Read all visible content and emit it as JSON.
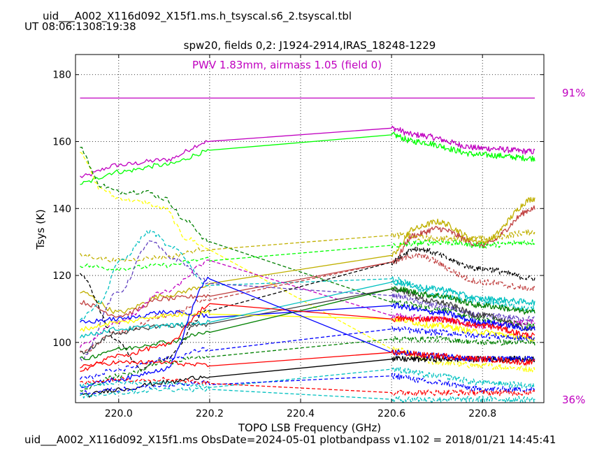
{
  "header": {
    "title": "uid___A002_X116d092_X15f1.ms.h_tsyscal.s6_2.tsyscal.tbl",
    "time": "UT 08:06:1308:19:38"
  },
  "footer": {
    "text": "uid___A002_X116d092_X15f1.ms  ObsDate=2024-05-01   plotbandpass v1.102 = 2018/01/21 14:45:41"
  },
  "chart_data": {
    "type": "line",
    "title": "spw20,  fields 0,2: J1924-2914,IRAS_18248-1229",
    "xlabel": "TOPO LSB Frequency (GHz)",
    "ylabel": "Tsys (K)",
    "xlim": [
      219.905,
      220.935
    ],
    "ylim": [
      82,
      186
    ],
    "xticks": [
      "220.0",
      "220.2",
      "220.4",
      "220.6",
      "220.8"
    ],
    "yticks": [
      "100",
      "120",
      "140",
      "160",
      "180"
    ],
    "grid": true,
    "annotation": "PWV 1.83mm, airmass 1.05 (field 0)",
    "transmission_label_top": "91%",
    "transmission_label_bottom": "36%",
    "transmission_color": "#c000c0",
    "transmission_value": 173,
    "gap": [
      220.2,
      220.6
    ],
    "series": [
      {
        "color": "#c000c0",
        "dash": false,
        "knots": [
          [
            219.915,
            149.5
          ],
          [
            220.0,
            153
          ],
          [
            220.1,
            154.5
          ],
          [
            220.2,
            160
          ],
          [
            220.6,
            164
          ],
          [
            220.65,
            162
          ],
          [
            220.8,
            158
          ],
          [
            220.915,
            157
          ]
        ]
      },
      {
        "color": "#00ff00",
        "dash": false,
        "knots": [
          [
            219.915,
            147.5
          ],
          [
            220.0,
            151
          ],
          [
            220.1,
            153
          ],
          [
            220.2,
            157
          ],
          [
            220.6,
            162
          ],
          [
            220.65,
            160
          ],
          [
            220.8,
            156
          ],
          [
            220.915,
            155
          ]
        ]
      },
      {
        "color": "#ffff00",
        "dash": true,
        "knots": [
          [
            219.915,
            157
          ],
          [
            219.96,
            146
          ],
          [
            220.0,
            143
          ],
          [
            220.05,
            142
          ],
          [
            220.1,
            140
          ],
          [
            220.15,
            131
          ],
          [
            220.2,
            128
          ],
          [
            220.6,
            98
          ],
          [
            220.7,
            94
          ],
          [
            220.8,
            93
          ],
          [
            220.915,
            92
          ]
        ]
      },
      {
        "color": "#008000",
        "dash": true,
        "knots": [
          [
            219.915,
            158
          ],
          [
            219.96,
            147
          ],
          [
            220.0,
            145
          ],
          [
            220.06,
            145
          ],
          [
            220.1,
            143
          ],
          [
            220.15,
            136
          ],
          [
            220.2,
            130
          ],
          [
            220.6,
            112
          ],
          [
            220.7,
            110
          ],
          [
            220.8,
            107
          ],
          [
            220.915,
            105
          ]
        ]
      },
      {
        "color": "#c0b000",
        "dash": false,
        "knots": [
          [
            219.915,
            115
          ],
          [
            220.0,
            109
          ],
          [
            220.1,
            114
          ],
          [
            220.2,
            117
          ],
          [
            220.6,
            126
          ],
          [
            220.65,
            134
          ],
          [
            220.7,
            136
          ],
          [
            220.8,
            130
          ],
          [
            220.915,
            143
          ]
        ]
      },
      {
        "color": "#c04040",
        "dash": false,
        "knots": [
          [
            219.915,
            112
          ],
          [
            220.0,
            108
          ],
          [
            220.1,
            113
          ],
          [
            220.2,
            114
          ],
          [
            220.6,
            124
          ],
          [
            220.65,
            132
          ],
          [
            220.7,
            134
          ],
          [
            220.8,
            129
          ],
          [
            220.915,
            140
          ]
        ]
      },
      {
        "color": "#c0b000",
        "dash": true,
        "knots": [
          [
            219.915,
            126
          ],
          [
            220.0,
            124.5
          ],
          [
            220.1,
            125.5
          ],
          [
            220.2,
            128
          ],
          [
            220.6,
            132
          ],
          [
            220.7,
            131
          ],
          [
            220.8,
            131
          ],
          [
            220.915,
            133
          ]
        ]
      },
      {
        "color": "#00ff00",
        "dash": true,
        "knots": [
          [
            219.915,
            123
          ],
          [
            220.0,
            122
          ],
          [
            220.1,
            123
          ],
          [
            220.2,
            125
          ],
          [
            220.6,
            129
          ],
          [
            220.7,
            130
          ],
          [
            220.8,
            129
          ],
          [
            220.915,
            130
          ]
        ]
      },
      {
        "color": "#00c0c0",
        "dash": true,
        "knots": [
          [
            219.915,
            107
          ],
          [
            219.96,
            112
          ],
          [
            220.0,
            124
          ],
          [
            220.07,
            133
          ],
          [
            220.12,
            128
          ],
          [
            220.2,
            117
          ],
          [
            220.6,
            119
          ],
          [
            220.7,
            114
          ],
          [
            220.8,
            112
          ],
          [
            220.915,
            110
          ]
        ]
      },
      {
        "color": "#6040c0",
        "dash": true,
        "knots": [
          [
            219.915,
            95
          ],
          [
            220.0,
            115
          ],
          [
            220.07,
            130
          ],
          [
            220.12,
            125
          ],
          [
            220.2,
            118
          ],
          [
            220.6,
            114
          ],
          [
            220.7,
            111
          ],
          [
            220.8,
            108
          ],
          [
            220.915,
            107
          ]
        ]
      },
      {
        "color": "#c000c0",
        "dash": true,
        "knots": [
          [
            219.915,
            99
          ],
          [
            220.0,
            106
          ],
          [
            220.1,
            115
          ],
          [
            220.2,
            124
          ],
          [
            220.6,
            108
          ],
          [
            220.7,
            107
          ],
          [
            220.8,
            105
          ],
          [
            220.915,
            106
          ]
        ]
      },
      {
        "color": "#000000",
        "dash": true,
        "knots": [
          [
            219.915,
            120
          ],
          [
            220.0,
            100
          ],
          [
            220.05,
            92
          ],
          [
            220.1,
            95
          ],
          [
            220.2,
            110
          ],
          [
            220.6,
            124
          ],
          [
            220.65,
            128
          ],
          [
            220.8,
            122
          ],
          [
            220.915,
            119
          ]
        ]
      },
      {
        "color": "#c04040",
        "dash": true,
        "knots": [
          [
            219.915,
            97
          ],
          [
            220.0,
            103
          ],
          [
            220.1,
            108
          ],
          [
            220.2,
            113
          ],
          [
            220.6,
            124
          ],
          [
            220.65,
            126
          ],
          [
            220.8,
            118
          ],
          [
            220.915,
            116
          ]
        ]
      },
      {
        "color": "#404040",
        "dash": false,
        "knots": [
          [
            219.915,
            97
          ],
          [
            220.0,
            103
          ],
          [
            220.1,
            105
          ],
          [
            220.2,
            105
          ],
          [
            220.6,
            116
          ],
          [
            220.7,
            112
          ],
          [
            220.8,
            108
          ],
          [
            220.915,
            104
          ]
        ]
      },
      {
        "color": "#0000ff",
        "dash": false,
        "knots": [
          [
            219.915,
            106
          ],
          [
            220.0,
            107
          ],
          [
            220.1,
            109
          ],
          [
            220.2,
            108
          ],
          [
            220.6,
            111
          ],
          [
            220.7,
            109
          ],
          [
            220.8,
            106
          ],
          [
            220.915,
            104
          ]
        ]
      },
      {
        "color": "#ffff00",
        "dash": false,
        "knots": [
          [
            219.915,
            104
          ],
          [
            220.0,
            106
          ],
          [
            220.1,
            108
          ],
          [
            220.2,
            109
          ],
          [
            220.6,
            107
          ],
          [
            220.7,
            105
          ],
          [
            220.8,
            103
          ],
          [
            220.915,
            101
          ]
        ]
      },
      {
        "color": "#00c0c0",
        "dash": false,
        "knots": [
          [
            219.915,
            102
          ],
          [
            220.0,
            104
          ],
          [
            220.1,
            105
          ],
          [
            220.2,
            106
          ],
          [
            220.6,
            118
          ],
          [
            220.7,
            116
          ],
          [
            220.8,
            113
          ],
          [
            220.915,
            112
          ]
        ]
      },
      {
        "color": "#008000",
        "dash": false,
        "knots": [
          [
            219.915,
            95
          ],
          [
            220.0,
            98
          ],
          [
            220.1,
            100
          ],
          [
            220.2,
            103
          ],
          [
            220.6,
            116
          ],
          [
            220.7,
            114
          ],
          [
            220.8,
            111
          ],
          [
            220.915,
            109
          ]
        ]
      },
      {
        "color": "#ff0000",
        "dash": false,
        "knots": [
          [
            219.915,
            92
          ],
          [
            220.0,
            96
          ],
          [
            220.1,
            99
          ],
          [
            220.2,
            111
          ],
          [
            220.6,
            107
          ],
          [
            220.7,
            107
          ],
          [
            220.8,
            105
          ],
          [
            220.915,
            102
          ]
        ]
      },
      {
        "color": "#0000ff",
        "dash": true,
        "knots": [
          [
            219.915,
            89
          ],
          [
            220.0,
            92
          ],
          [
            220.1,
            95
          ],
          [
            220.2,
            98
          ],
          [
            220.6,
            104
          ],
          [
            220.7,
            103
          ],
          [
            220.8,
            102
          ],
          [
            220.915,
            101
          ]
        ]
      },
      {
        "color": "#008000",
        "dash": true,
        "knots": [
          [
            219.915,
            86
          ],
          [
            220.0,
            90
          ],
          [
            220.1,
            94
          ],
          [
            220.2,
            96
          ],
          [
            220.6,
            101
          ],
          [
            220.7,
            101
          ],
          [
            220.8,
            100
          ],
          [
            220.915,
            100
          ]
        ]
      },
      {
        "color": "#000000",
        "dash": false,
        "knots": [
          [
            219.915,
            84
          ],
          [
            220.0,
            86
          ],
          [
            220.1,
            88
          ],
          [
            220.2,
            90
          ],
          [
            220.6,
            95
          ],
          [
            220.7,
            95
          ],
          [
            220.8,
            95
          ],
          [
            220.915,
            95
          ]
        ]
      },
      {
        "color": "#0000ff",
        "dash": false,
        "knots": [
          [
            219.915,
            87
          ],
          [
            220.0,
            89
          ],
          [
            220.1,
            92
          ],
          [
            220.2,
            119
          ],
          [
            220.6,
            97
          ],
          [
            220.7,
            96
          ],
          [
            220.8,
            95
          ],
          [
            220.915,
            95
          ]
        ]
      },
      {
        "color": "#ff0000",
        "dash": false,
        "knots": [
          [
            219.915,
            93
          ],
          [
            220.0,
            94
          ],
          [
            220.1,
            94
          ],
          [
            220.2,
            93
          ],
          [
            220.6,
            97
          ],
          [
            220.7,
            96
          ],
          [
            220.8,
            95
          ],
          [
            220.915,
            94
          ]
        ]
      },
      {
        "color": "#00c0c0",
        "dash": true,
        "knots": [
          [
            219.915,
            87
          ],
          [
            220.0,
            88
          ],
          [
            220.1,
            88
          ],
          [
            220.2,
            87
          ],
          [
            220.6,
            92
          ],
          [
            220.7,
            90
          ],
          [
            220.8,
            88
          ],
          [
            220.915,
            87
          ]
        ]
      },
      {
        "color": "#0000ff",
        "dash": true,
        "knots": [
          [
            219.915,
            85
          ],
          [
            220.0,
            86
          ],
          [
            220.1,
            87
          ],
          [
            220.2,
            88
          ],
          [
            220.6,
            90
          ],
          [
            220.7,
            88
          ],
          [
            220.8,
            86
          ],
          [
            220.915,
            86
          ]
        ]
      },
      {
        "color": "#ff0000",
        "dash": true,
        "knots": [
          [
            219.915,
            88
          ],
          [
            220.0,
            89
          ],
          [
            220.1,
            89
          ],
          [
            220.2,
            88
          ],
          [
            220.6,
            85
          ],
          [
            220.7,
            85
          ],
          [
            220.8,
            85
          ],
          [
            220.915,
            85
          ]
        ]
      },
      {
        "color": "#00c0c0",
        "dash": true,
        "knots": [
          [
            219.915,
            84
          ],
          [
            220.0,
            85
          ],
          [
            220.1,
            86
          ],
          [
            220.2,
            86
          ],
          [
            220.6,
            83
          ],
          [
            220.7,
            83
          ],
          [
            220.8,
            83
          ],
          [
            220.915,
            83
          ]
        ]
      }
    ]
  }
}
